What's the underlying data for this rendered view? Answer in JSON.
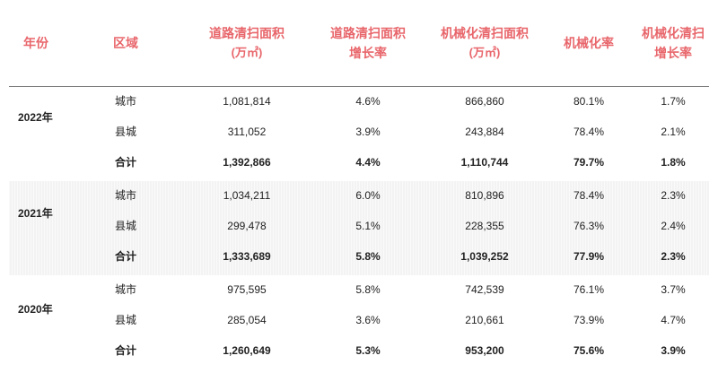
{
  "header": {
    "year": "年份",
    "region": "区域",
    "area_l1": "道路清扫面积",
    "area_l2": "(万㎡)",
    "area_growth_l1": "道路清扫面积",
    "area_growth_l2": "增长率",
    "mech_area_l1": "机械化清扫面积",
    "mech_area_l2": "(万㎡)",
    "mech_rate": "机械化率",
    "mech_growth_l1": "机械化清扫",
    "mech_growth_l2": "增长率"
  },
  "groups": [
    {
      "year": "2022年",
      "rows": [
        {
          "region": "城市",
          "area": "1,081,814",
          "area_growth": "4.6%",
          "mech_area": "866,860",
          "mech_rate": "80.1%",
          "mech_growth": "1.7%"
        },
        {
          "region": "县城",
          "area": "311,052",
          "area_growth": "3.9%",
          "mech_area": "243,884",
          "mech_rate": "78.4%",
          "mech_growth": "2.1%"
        },
        {
          "region": "合计",
          "area": "1,392,866",
          "area_growth": "4.4%",
          "mech_area": "1,110,744",
          "mech_rate": "79.7%",
          "mech_growth": "1.8%"
        }
      ]
    },
    {
      "year": "2021年",
      "rows": [
        {
          "region": "城市",
          "area": "1,034,211",
          "area_growth": "6.0%",
          "mech_area": "810,896",
          "mech_rate": "78.4%",
          "mech_growth": "2.3%"
        },
        {
          "region": "县城",
          "area": "299,478",
          "area_growth": "5.1%",
          "mech_area": "228,355",
          "mech_rate": "76.3%",
          "mech_growth": "2.4%"
        },
        {
          "region": "合计",
          "area": "1,333,689",
          "area_growth": "5.8%",
          "mech_area": "1,039,252",
          "mech_rate": "77.9%",
          "mech_growth": "2.3%"
        }
      ]
    },
    {
      "year": "2020年",
      "rows": [
        {
          "region": "城市",
          "area": "975,595",
          "area_growth": "5.8%",
          "mech_area": "742,539",
          "mech_rate": "76.1%",
          "mech_growth": "3.7%"
        },
        {
          "region": "县城",
          "area": "285,054",
          "area_growth": "3.6%",
          "mech_area": "210,661",
          "mech_rate": "73.9%",
          "mech_growth": "4.7%"
        },
        {
          "region": "合计",
          "area": "1,260,649",
          "area_growth": "5.3%",
          "mech_area": "953,200",
          "mech_rate": "75.6%",
          "mech_growth": "3.9%"
        }
      ]
    }
  ],
  "colors": {
    "header_text": "#e8666b",
    "band_shade": "#f3f3f3",
    "rule": "#7a7a7a"
  }
}
